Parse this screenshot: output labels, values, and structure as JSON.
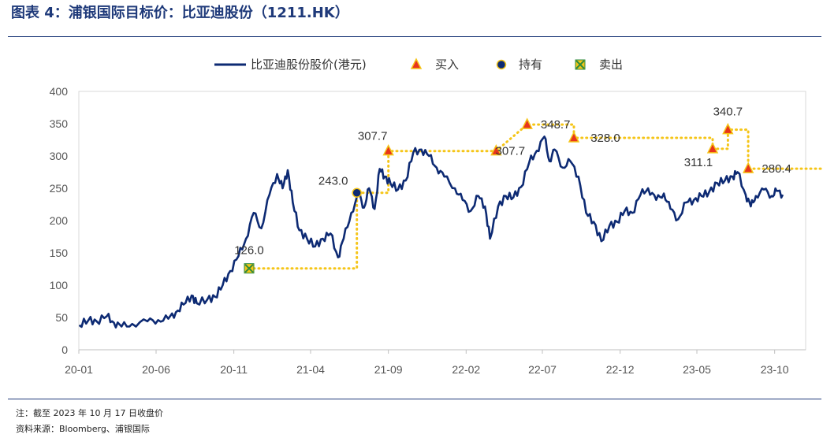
{
  "title": "图表 4：浦银国际目标价：比亚迪股份（1211.HK）",
  "notes": [
    "注：截至 2023 年 10 月 17 日收盘价",
    "资料来源：Bloomberg、浦银国际"
  ],
  "colors": {
    "line": "#0d2a73",
    "buy": "#e8341c",
    "hold": "#0d2a73",
    "sell": "#2e8b3e",
    "target": "#f5c518",
    "marker_fill": "#f5c518"
  },
  "chart_data": {
    "type": "line",
    "ylim": [
      0,
      400
    ],
    "yticks": [
      0,
      50,
      100,
      150,
      200,
      250,
      300,
      350,
      400
    ],
    "xlim": [
      "2020-01",
      "2023-12"
    ],
    "xticks": [
      {
        "label": "20-01",
        "date": "2020-01"
      },
      {
        "label": "20-06",
        "date": "2020-06"
      },
      {
        "label": "20-11",
        "date": "2020-11"
      },
      {
        "label": "21-04",
        "date": "2021-04"
      },
      {
        "label": "21-09",
        "date": "2021-09"
      },
      {
        "label": "22-02",
        "date": "2022-02"
      },
      {
        "label": "22-07",
        "date": "2022-07"
      },
      {
        "label": "22-12",
        "date": "2022-12"
      },
      {
        "label": "23-05",
        "date": "2023-05"
      },
      {
        "label": "23-10",
        "date": "2023-10"
      }
    ],
    "legend": {
      "placement": "top",
      "entries": [
        {
          "name": "比亚迪股份股价(港元)",
          "kind": "line"
        },
        {
          "name": "买入",
          "kind": "buy"
        },
        {
          "name": "持有",
          "kind": "hold"
        },
        {
          "name": "卖出",
          "kind": "sell"
        }
      ]
    },
    "price": {
      "name": "比亚迪股份股价(港元)",
      "points": [
        [
          "2020-01-02",
          38
        ],
        [
          "2020-01-20",
          46
        ],
        [
          "2020-02-05",
          44
        ],
        [
          "2020-02-25",
          52
        ],
        [
          "2020-03-10",
          42
        ],
        [
          "2020-03-25",
          36
        ],
        [
          "2020-04-15",
          40
        ],
        [
          "2020-05-15",
          44
        ],
        [
          "2020-06-05",
          46
        ],
        [
          "2020-06-25",
          48
        ],
        [
          "2020-07-10",
          58
        ],
        [
          "2020-07-25",
          70
        ],
        [
          "2020-08-10",
          84
        ],
        [
          "2020-08-20",
          72
        ],
        [
          "2020-09-10",
          78
        ],
        [
          "2020-09-25",
          82
        ],
        [
          "2020-10-10",
          100
        ],
        [
          "2020-10-25",
          122
        ],
        [
          "2020-11-10",
          145
        ],
        [
          "2020-11-25",
          172
        ],
        [
          "2020-12-10",
          212
        ],
        [
          "2020-12-25",
          188
        ],
        [
          "2021-01-10",
          240
        ],
        [
          "2021-01-25",
          272
        ],
        [
          "2021-02-05",
          250
        ],
        [
          "2021-02-15",
          278
        ],
        [
          "2021-02-25",
          228
        ],
        [
          "2021-03-10",
          185
        ],
        [
          "2021-03-25",
          172
        ],
        [
          "2021-04-10",
          160
        ],
        [
          "2021-04-25",
          172
        ],
        [
          "2021-05-10",
          180
        ],
        [
          "2021-05-25",
          143
        ],
        [
          "2021-06-05",
          172
        ],
        [
          "2021-06-20",
          212
        ],
        [
          "2021-07-05",
          240
        ],
        [
          "2021-07-15",
          220
        ],
        [
          "2021-07-25",
          250
        ],
        [
          "2021-08-05",
          218
        ],
        [
          "2021-08-15",
          280
        ],
        [
          "2021-08-25",
          268
        ],
        [
          "2021-09-05",
          258
        ],
        [
          "2021-09-20",
          248
        ],
        [
          "2021-10-05",
          262
        ],
        [
          "2021-10-20",
          305
        ],
        [
          "2021-11-05",
          310
        ],
        [
          "2021-11-20",
          300
        ],
        [
          "2021-12-05",
          282
        ],
        [
          "2021-12-20",
          268
        ],
        [
          "2022-01-10",
          250
        ],
        [
          "2022-01-25",
          232
        ],
        [
          "2022-02-10",
          215
        ],
        [
          "2022-02-25",
          238
        ],
        [
          "2022-03-10",
          222
        ],
        [
          "2022-03-20",
          172
        ],
        [
          "2022-04-05",
          222
        ],
        [
          "2022-04-20",
          238
        ],
        [
          "2022-05-05",
          236
        ],
        [
          "2022-05-20",
          252
        ],
        [
          "2022-06-05",
          290
        ],
        [
          "2022-06-20",
          308
        ],
        [
          "2022-07-05",
          330
        ],
        [
          "2022-07-15",
          292
        ],
        [
          "2022-07-25",
          310
        ],
        [
          "2022-08-10",
          282
        ],
        [
          "2022-08-25",
          292
        ],
        [
          "2022-09-10",
          268
        ],
        [
          "2022-09-25",
          212
        ],
        [
          "2022-10-10",
          198
        ],
        [
          "2022-10-25",
          168
        ],
        [
          "2022-11-10",
          192
        ],
        [
          "2022-11-25",
          198
        ],
        [
          "2022-12-10",
          215
        ],
        [
          "2022-12-25",
          212
        ],
        [
          "2023-01-10",
          240
        ],
        [
          "2023-01-25",
          250
        ],
        [
          "2023-02-10",
          232
        ],
        [
          "2023-02-25",
          242
        ],
        [
          "2023-03-10",
          218
        ],
        [
          "2023-03-25",
          202
        ],
        [
          "2023-04-10",
          228
        ],
        [
          "2023-04-25",
          232
        ],
        [
          "2023-05-10",
          238
        ],
        [
          "2023-05-25",
          244
        ],
        [
          "2023-06-10",
          258
        ],
        [
          "2023-06-25",
          262
        ],
        [
          "2023-07-10",
          268
        ],
        [
          "2023-07-20",
          275
        ],
        [
          "2023-08-05",
          240
        ],
        [
          "2023-08-15",
          222
        ],
        [
          "2023-08-25",
          238
        ],
        [
          "2023-09-10",
          248
        ],
        [
          "2023-09-25",
          238
        ],
        [
          "2023-10-05",
          246
        ],
        [
          "2023-10-17",
          240
        ]
      ]
    },
    "target_price_steps": [
      [
        "2020-12-01",
        126.0
      ],
      [
        "2021-07-01",
        126.0
      ],
      [
        "2021-07-01",
        243.0
      ],
      [
        "2021-09-01",
        243.0
      ],
      [
        "2021-09-01",
        307.7
      ],
      [
        "2022-04-01",
        307.7
      ],
      [
        "2022-06-01",
        348.7
      ],
      [
        "2022-09-01",
        348.7
      ],
      [
        "2022-09-01",
        328.0
      ],
      [
        "2023-06-01",
        328.0
      ],
      [
        "2023-06-01",
        311.1
      ],
      [
        "2023-07-01",
        311.1
      ],
      [
        "2023-07-01",
        340.7
      ],
      [
        "2023-08-10",
        340.7
      ],
      [
        "2023-08-10",
        280.4
      ],
      [
        "2023-12-31",
        280.4
      ]
    ],
    "ratings": [
      {
        "date": "2020-12-01",
        "value": 126.0,
        "type": "sell",
        "label": "126.0"
      },
      {
        "date": "2021-07-01",
        "value": 243.0,
        "type": "hold",
        "label": "243.0"
      },
      {
        "date": "2021-09-01",
        "value": 307.7,
        "type": "buy",
        "label": "307.7"
      },
      {
        "date": "2022-04-01",
        "value": 307.7,
        "type": "buy",
        "label": "307.7"
      },
      {
        "date": "2022-06-01",
        "value": 348.7,
        "type": "buy",
        "label": "348.7"
      },
      {
        "date": "2022-09-01",
        "value": 328.0,
        "type": "buy",
        "label": "328.0"
      },
      {
        "date": "2023-06-01",
        "value": 311.1,
        "type": "buy",
        "label": "311.1"
      },
      {
        "date": "2023-07-01",
        "value": 340.7,
        "type": "buy",
        "label": "340.7"
      },
      {
        "date": "2023-08-10",
        "value": 280.4,
        "type": "buy",
        "label": "280.4"
      }
    ]
  }
}
